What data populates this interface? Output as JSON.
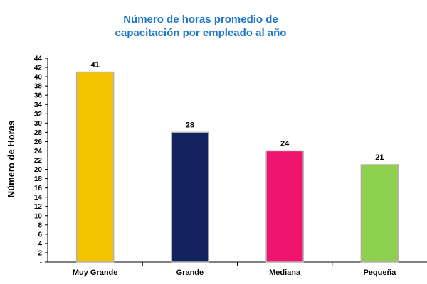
{
  "chart_data": {
    "type": "bar",
    "title_lines": [
      "Número de horas promedio de",
      "capacitación por empleado al año"
    ],
    "ylabel": "Número de Horas",
    "xlabel": "",
    "categories": [
      "Muy Grande",
      "Grande",
      "Mediana",
      "Pequeña"
    ],
    "values": [
      41,
      28,
      24,
      21
    ],
    "ylim": [
      0,
      44
    ],
    "ytick_step": 2,
    "ytick_labels": [
      "-",
      "2",
      "4",
      "6",
      "8",
      "10",
      "12",
      "14",
      "16",
      "18",
      "20",
      "22",
      "24",
      "26",
      "28",
      "30",
      "32",
      "34",
      "36",
      "38",
      "40",
      "42",
      "44"
    ],
    "bar_colors": [
      "#f5c400",
      "#13235f",
      "#f0146e",
      "#8fd14f"
    ],
    "bar_edge_color": "#b0b0b0",
    "grid": false,
    "legend": "none"
  }
}
